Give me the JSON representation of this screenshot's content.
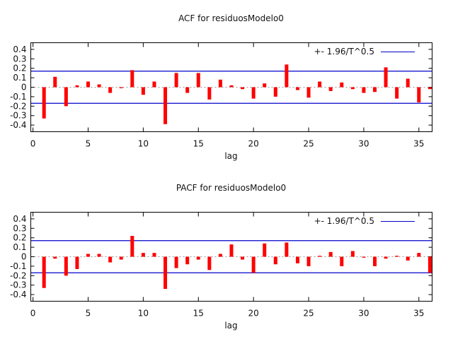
{
  "figure": {
    "background": "#ffffff"
  },
  "colors": {
    "bar": "#ff0000",
    "band_line": "#0000cc",
    "zero_line": "#999999",
    "frame": "#000000",
    "text": "#111111"
  },
  "chart_data": [
    {
      "type": "bar",
      "title": "ACF for residuosModelo0",
      "xlabel": "lag",
      "ylabel": "",
      "legend": "+- 1.96/T^0.5",
      "legend_position": "top-right-inside",
      "grid": false,
      "confidence_band": 0.17,
      "zero_line": true,
      "xlim": [
        -0.2,
        36.2
      ],
      "ylim": [
        -0.47,
        0.47
      ],
      "xticks": [
        "0",
        "5",
        "10",
        "15",
        "20",
        "25",
        "30",
        "35"
      ],
      "yticks": [
        "0.4",
        "0.3",
        "0.2",
        "0.1",
        "0",
        "-0.1",
        "-0.2",
        "-0.3",
        "-0.4"
      ],
      "x": [
        1,
        2,
        3,
        4,
        5,
        6,
        7,
        8,
        9,
        10,
        11,
        12,
        13,
        14,
        15,
        16,
        17,
        18,
        19,
        20,
        21,
        22,
        23,
        24,
        25,
        26,
        27,
        28,
        29,
        30,
        31,
        32,
        33,
        34,
        35,
        36
      ],
      "values": [
        -0.33,
        0.11,
        -0.2,
        0.02,
        0.06,
        0.03,
        -0.06,
        -0.01,
        0.18,
        -0.08,
        0.06,
        -0.39,
        0.15,
        -0.06,
        0.15,
        -0.13,
        0.08,
        0.02,
        -0.02,
        -0.12,
        0.04,
        -0.1,
        0.24,
        -0.03,
        -0.11,
        0.06,
        -0.04,
        0.05,
        -0.02,
        -0.06,
        -0.05,
        0.21,
        -0.12,
        0.09,
        -0.16,
        -0.02
      ]
    },
    {
      "type": "bar",
      "title": "PACF for residuosModelo0",
      "xlabel": "lag",
      "ylabel": "",
      "legend": "+- 1.96/T^0.5",
      "legend_position": "top-right-inside",
      "grid": false,
      "confidence_band": 0.17,
      "zero_line": true,
      "xlim": [
        -0.2,
        36.2
      ],
      "ylim": [
        -0.47,
        0.47
      ],
      "xticks": [
        "0",
        "5",
        "10",
        "15",
        "20",
        "25",
        "30",
        "35"
      ],
      "yticks": [
        "0.4",
        "0.3",
        "0.2",
        "0.1",
        "0",
        "-0.1",
        "-0.2",
        "-0.3",
        "-0.4"
      ],
      "x": [
        1,
        2,
        3,
        4,
        5,
        6,
        7,
        8,
        9,
        10,
        11,
        12,
        13,
        14,
        15,
        16,
        17,
        18,
        19,
        20,
        21,
        22,
        23,
        24,
        25,
        26,
        27,
        28,
        29,
        30,
        31,
        32,
        33,
        34,
        35,
        36
      ],
      "values": [
        -0.33,
        -0.02,
        -0.2,
        -0.13,
        0.03,
        0.03,
        -0.06,
        -0.03,
        0.22,
        0.04,
        0.04,
        -0.34,
        -0.12,
        -0.08,
        -0.03,
        -0.14,
        0.03,
        0.13,
        -0.03,
        -0.17,
        0.14,
        -0.08,
        0.15,
        -0.07,
        -0.1,
        0.01,
        0.05,
        -0.1,
        0.06,
        -0.01,
        -0.1,
        -0.02,
        0.01,
        -0.04,
        0.04,
        -0.17
      ]
    }
  ]
}
